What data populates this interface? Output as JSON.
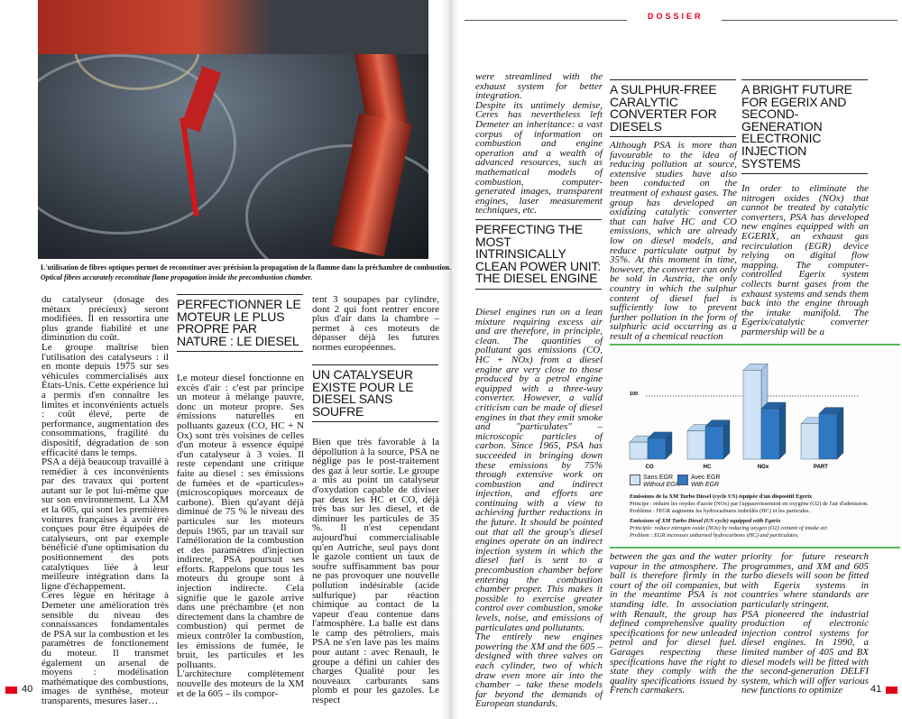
{
  "header": {
    "section": "DOSSIER"
  },
  "photo": {
    "caption_fr": "L'utilisation de fibres optiques permet de reconstituer avec précision la propagation de la flamme dans la préchambre de combustion.",
    "caption_en": "Optical fibres accurately reconstitute flame propagation inside the precombustion chamber."
  },
  "left_page": {
    "page_number": "40",
    "col1": [
      "du catalyseur (dosage des métaux précieux) seront modifiées. Il en ressortira une plus grande fiabilité et une diminution du coût.",
      "Le groupe maîtrise bien l'utilisation des catalyseurs : il en monte depuis 1975 sur ses véhicules commercialisés aux États-Unis. Cette expérience lui a permis d'en connaître les limites et inconvénients actuels : coût élevé, perte de performance, augmentation des consommations, fragilité du dispositif, dégradation de son efficacité dans le temps.",
      "PSA a déjà beaucoup travaillé à remédier à ces inconvénients par des travaux qui portent autant sur le pot lui-même que sur son environnement. La XM et la 605, qui sont les premières voitures françaises à avoir été conçues pour être équipées de catalyseurs, ont par exemple bénéficié d'une optimisation du positionnement des pots catalytiques liée à leur meilleure intégration dans la ligne d'échappement.",
      "Ceres lègue en héritage à Demeter une amélioration très sensible du niveau des connaissances fondamentales de PSA sur la combustion et les paramètres de fonctionement du moteur. Il transmet également un arsenal de moyens : modélisation mathématique des combustions, images de synthèse, moteur transparents, mesures laser…"
    ],
    "heading1": "PERFECTIONNER LE MOTEUR LE PLUS PROPRE PAR NATURE : LE DIESEL",
    "col2": [
      "Le moteur diesel fonctionne en excès d'air : c'est par principe un moteur à mélange pauvre, donc un moteur propre. Ses émissions naturelles en polluants gazeux (CO, HC + N Ox) sont très voisines de celles d'un moteur à essence équipé d'un catalyseur à 3 voies. Il reste cependant une critique faite au diesel : ses émissions de fumées et de «particules» (microscopiques morceaux de carbone). Bien qu'ayant déjà diminué de 75 % le niveau des particules sur les moteurs depuis 1965, par un travail sur l'amélioration de la combustion et des paramètres d'injection indirecte, PSA poursuit ses efforts. Rappelons que tous les moteurs du groupe sont à injection indirecte. Cela signifie que le gazole arrive dans une préchambre (et non directement dans la chambre de combustion) qui permet de mieux contrôler la combustion, les émissions de fumée, le bruit, les particules et les polluants.",
      "L'architecture complètement nouvelle des moteurs de la XM et de la 605 – ils compor-"
    ],
    "col3_top": "tent 3 soupapes par cylindre, dont 2 qui font rentrer encore plus d'air dans la chambre – permet à ces moteurs de dépasser déjà les futures normes européennes.",
    "heading2": "UN CATALYSEUR EXISTE POUR LE DIESEL SANS SOUFRE",
    "col3": "Bien que très favorable à la dépollution à la source, PSA ne néglige pas le post-traitement des gaz à leur sortie. Le groupe a mis au point un catalyseur d'oxydation capable de diviser par deux les HC et CO, déjà très bas sur les diesel, et de diminuer les particules de 35 %. Il n'est cependant aujourd'hui commercialisable qu'en Autriche, seul pays dont le gazole contient un taux de soufre suffisamment bas pour ne pas provoquer une nouvelle pollution indésirable (acide sulfurique) par réaction chimique au contact de la vapeur d'eau contenue dans l'atmosphère. La balle est dans le camp des pétroliers, mais PSA ne s'en lave pas les mains pour autant : avec Renault, le groupe a défini un cahier des charges Qualité pour les nouveaux carburants sans plomb et pour les gazoles. Le respect"
  },
  "right_page": {
    "page_number": "41",
    "col1_top": [
      "were streamlined with the exhaust system for better integration.",
      "Despite its untimely demise, Ceres has nevertheless left Demeter an inheritance: a vast corpus of information on combustion and engine operation and a wealth of advanced resources, such as mathematical models of combustion, computer-generated images, transparent engines, laser measurement techniques, etc."
    ],
    "heading1": "PERFECTING THE MOST INTRINSICALLY CLEAN POWER UNIT: THE DIESEL ENGINE",
    "col1": [
      "Diesel engines run on a lean mixture requiring excess air and are therefore, in principle, clean. The quantities of pollutant gas emissions (CO, HC + NOx) from a diesel engine are very close to those produced by a petrol engine equipped with a three-way converter. However, a valid criticism can be made of diesel engines in that they emit smoke and \"particulates\" – microscopic particles of carbon. Since 1965, PSA has succeeded in bringing down these emissions by 75% through extensive work on combustion and indirect injection, and efforts are continuing with a view to achieving further reductions in the future. It should be pointed out that all the group's diesel engines operate on an indirect injection system in which the diesel fuel is sent to a precombustion chamber before entering the combustion chamber proper. This makes it possible to exercise greater control over combustion, smoke levels, noise, and emissions of particulates and pollutants.",
      "The entirely new engines powering the XM and the 605 – designed with three valves on each cylinder, two of which draw even more air into the chamber – take these models far beyond the demands of European standards."
    ],
    "heading2": "A SULPHUR-FREE CARALYTIC CONVERTER FOR DIESELS",
    "col2_top": "Although PSA is more than favourable to the idea of reducing pollution at source, extensive studies have also been conducted on the treatment of exhaust gases. The group has developed an oxidizing catalytic converter that can halve HC and CO emissions, which are already low on diesel models, and reduce particulate output by 35%. At this moment in time, however, the converter can only be sold in Austria, the only country in which the sulphur content of diesel fuel is sufficiently low to prevent further pollution in the form of sulphuric acid occurring as a result of a chemical reaction",
    "col2_bottom": "between the gas and the water vapour in the atmosphere. The ball is therefore firmly in the court of the oil companies, but in the meantime PSA is not standing idle. In association with Renault, the group has defined comprehensive quality specifications for new unleaded petrol and for diesel fuel. Garages respecting these specifications have the right to state they comply with the quality specifications issued by French carmakers.",
    "heading3": "A BRIGHT FUTURE FOR EGERIX AND SECOND-GENERATION ELECTRONIC INJECTION SYSTEMS",
    "col3_top": "In order to eliminate the nitrogen oxides (NOx) that cannot be treated by catalytic converters, PSA has developed new engines equipped with an EGERIX, an exhaust gas recirculation (EGR) device relying on digital flow mapping. The computer-controlled Egerix system collects burnt gases from the exhaust systems and sends them back into the engine through the intake manifold. The Egerix/catalytic converter partnership will be a",
    "col3_bottom": [
      "priority for future research programmes, and XM and 605 turbo diesels will soon be fitted with Egerix systems in countries where standards are particularly stringent.",
      "PSA pioneered the industrial production of electronic injection control systems for diesel engines. In 1990, a limited number of 405 and BX diesel models will be fitted with the second-generation DELFI system, which will offer various new functions to optimize"
    ]
  },
  "chart_data": {
    "type": "bar",
    "categories": [
      "CO",
      "HC",
      "NOx",
      "PART"
    ],
    "reference_label": "100",
    "reference_value": 100,
    "series": [
      {
        "name": "Sans EGR / Without EGR",
        "values": [
          27,
          45,
          141,
          56
        ],
        "color": "#cfe3f5"
      },
      {
        "name": "Avec EGR / With EGR",
        "values": [
          33,
          52,
          80,
          72
        ],
        "color": "#2f78c4"
      }
    ],
    "legend": [
      {
        "fr": "Sans EGR",
        "en": "Without EGR"
      },
      {
        "fr": "Avec EGR",
        "en": "With EGR"
      }
    ],
    "caption": [
      "Emissions de la XM Turbo Diesel (cycle US) équipée d'un dispositif Egerix",
      "Principe : réduire les oxydes d'azote (NOx) par l'appauvrissement en oxygène (O2) de l'air d'admission.",
      "Problème : l'EGR augmente les hydrocarbures imbrûlés (HC) et les particules.",
      "Emissions of XM Turbo Diesel (US cycle) equipped with Egerix",
      "Principle: reduce nitrogen oxide (NOx) by reducing oxygen (O2) content of intake air.",
      "Problem : EGR increases unburned hydrocarbons (HC) and particulates."
    ]
  }
}
